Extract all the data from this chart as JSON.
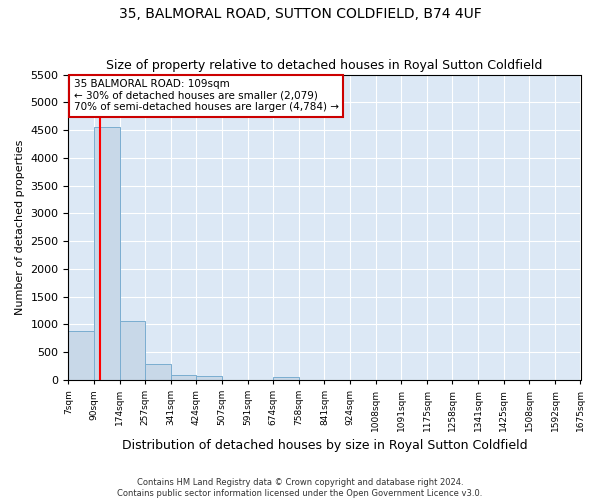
{
  "title1": "35, BALMORAL ROAD, SUTTON COLDFIELD, B74 4UF",
  "title2": "Size of property relative to detached houses in Royal Sutton Coldfield",
  "xlabel": "Distribution of detached houses by size in Royal Sutton Coldfield",
  "ylabel": "Number of detached properties",
  "footnote1": "Contains HM Land Registry data © Crown copyright and database right 2024.",
  "footnote2": "Contains public sector information licensed under the Open Government Licence v3.0.",
  "bins": [
    7,
    90,
    174,
    257,
    341,
    424,
    507,
    591,
    674,
    758,
    841,
    924,
    1008,
    1091,
    1175,
    1258,
    1341,
    1425,
    1508,
    1592,
    1675
  ],
  "counts": [
    880,
    4560,
    1060,
    285,
    90,
    75,
    0,
    0,
    55,
    0,
    0,
    0,
    0,
    0,
    0,
    0,
    0,
    0,
    0,
    0
  ],
  "bar_color": "#c8d8e8",
  "bar_edge_color": "#7aadd0",
  "red_line_x": 109,
  "annotation_line1": "35 BALMORAL ROAD: 109sqm",
  "annotation_line2": "← 30% of detached houses are smaller (2,079)",
  "annotation_line3": "70% of semi-detached houses are larger (4,784) →",
  "annotation_box_facecolor": "#ffffff",
  "annotation_box_edgecolor": "#cc0000",
  "ylim": [
    0,
    5500
  ],
  "yticks": [
    0,
    500,
    1000,
    1500,
    2000,
    2500,
    3000,
    3500,
    4000,
    4500,
    5000,
    5500
  ],
  "fig_bg_color": "#ffffff",
  "plot_bg_color": "#dce8f5",
  "grid_color": "#ffffff",
  "title1_fontsize": 10,
  "title2_fontsize": 9,
  "xlabel_fontsize": 9,
  "ylabel_fontsize": 8
}
